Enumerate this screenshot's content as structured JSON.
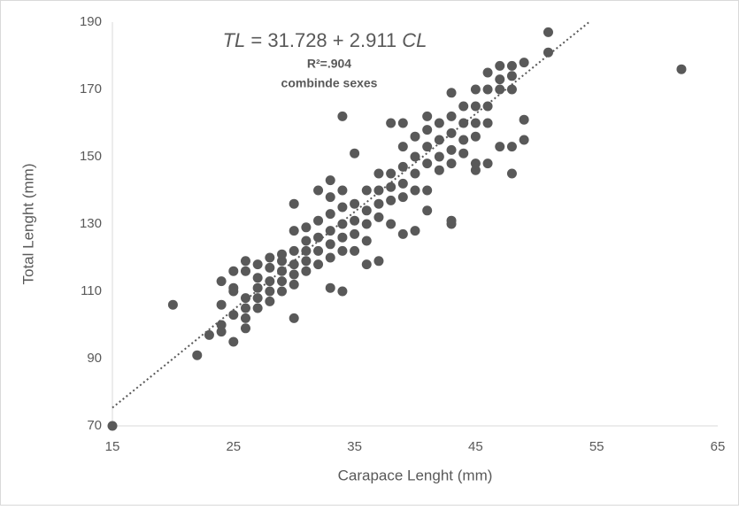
{
  "chart_data": {
    "type": "scatter",
    "equation": {
      "lhs": "TL",
      "mid": " = 31.728 + 2.911 ",
      "rhs": "CL"
    },
    "r_squared": "R²=.904",
    "note": "combinde sexes",
    "x_label": "Carapace Lenght (mm)",
    "y_label": "Total Lenght (mm)",
    "xlim": [
      15,
      65
    ],
    "xticks": [
      15,
      25,
      35,
      45,
      55,
      65
    ],
    "ylim": [
      70,
      190
    ],
    "yticks": [
      70,
      90,
      110,
      130,
      150,
      170,
      190
    ],
    "color": "#595959",
    "trendline": {
      "intercept": 31.728,
      "slope": 2.911,
      "color": "#595959"
    },
    "x": [
      15,
      20,
      22,
      23,
      24,
      24,
      24,
      24,
      25,
      25,
      25,
      25,
      25,
      26,
      26,
      26,
      26,
      26,
      26,
      27,
      27,
      27,
      27,
      27,
      28,
      28,
      28,
      28,
      28,
      29,
      29,
      29,
      29,
      29,
      30,
      30,
      30,
      30,
      30,
      30,
      30,
      31,
      31,
      31,
      31,
      31,
      32,
      32,
      32,
      32,
      32,
      33,
      33,
      33,
      33,
      33,
      33,
      33,
      34,
      34,
      34,
      34,
      34,
      34,
      34,
      35,
      35,
      35,
      35,
      35,
      36,
      36,
      36,
      36,
      36,
      37,
      37,
      37,
      37,
      37,
      38,
      38,
      38,
      38,
      38,
      39,
      39,
      39,
      39,
      39,
      39,
      40,
      40,
      40,
      40,
      40,
      41,
      41,
      41,
      41,
      41,
      41,
      42,
      42,
      42,
      42,
      43,
      43,
      43,
      43,
      43,
      43,
      43,
      44,
      44,
      44,
      44,
      45,
      45,
      45,
      45,
      45,
      45,
      46,
      46,
      46,
      46,
      46,
      47,
      47,
      47,
      47,
      48,
      48,
      48,
      48,
      48,
      49,
      49,
      49,
      51,
      51,
      62
    ],
    "values": [
      70,
      106,
      91,
      97,
      113,
      106,
      98,
      100,
      95,
      103,
      110,
      111,
      116,
      99,
      102,
      105,
      108,
      116,
      119,
      105,
      108,
      111,
      114,
      118,
      107,
      110,
      113,
      117,
      120,
      110,
      113,
      116,
      119,
      121,
      102,
      112,
      115,
      118,
      122,
      128,
      136,
      116,
      119,
      122,
      125,
      129,
      118,
      122,
      126,
      131,
      140,
      111,
      120,
      124,
      128,
      133,
      138,
      143,
      110,
      122,
      126,
      130,
      135,
      140,
      162,
      122,
      127,
      131,
      136,
      151,
      118,
      125,
      130,
      134,
      140,
      119,
      132,
      136,
      140,
      145,
      130,
      137,
      141,
      145,
      160,
      127,
      138,
      142,
      147,
      153,
      160,
      128,
      140,
      145,
      150,
      156,
      134,
      140,
      148,
      153,
      158,
      162,
      146,
      150,
      155,
      160,
      130,
      131,
      148,
      152,
      157,
      162,
      169,
      151,
      155,
      160,
      165,
      146,
      148,
      156,
      160,
      165,
      170,
      148,
      160,
      165,
      170,
      175,
      153,
      170,
      173,
      177,
      145,
      153,
      170,
      174,
      177,
      155,
      161,
      178,
      181,
      187,
      176
    ]
  }
}
